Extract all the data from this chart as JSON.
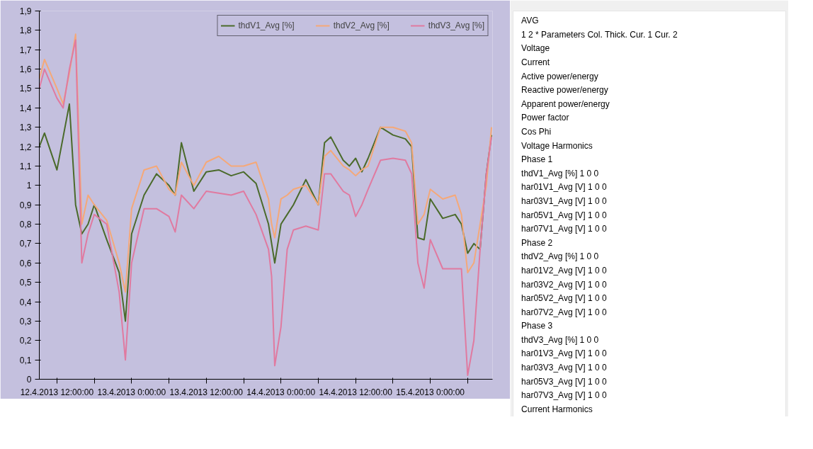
{
  "chart_data": [
    {
      "type": "line",
      "x": [
        "2013-04-12T09:10",
        "2013-04-12T10:00",
        "2013-04-12T12:00",
        "2013-04-12T13:00",
        "2013-04-12T14:00",
        "2013-04-12T15:00",
        "2013-04-12T16:00",
        "2013-04-12T17:00",
        "2013-04-12T18:00",
        "2013-04-12T20:00",
        "2013-04-12T22:00",
        "2013-04-12T23:00",
        "2013-04-13T00:00",
        "2013-04-13T02:00",
        "2013-04-13T04:00",
        "2013-04-13T06:00",
        "2013-04-13T07:00",
        "2013-04-13T08:00",
        "2013-04-13T10:00",
        "2013-04-13T12:00",
        "2013-04-13T14:00",
        "2013-04-13T16:00",
        "2013-04-13T18:00",
        "2013-04-13T20:00",
        "2013-04-13T22:00",
        "2013-04-13T22:30",
        "2013-04-13T23:00",
        "2013-04-14T00:00",
        "2013-04-14T01:00",
        "2013-04-14T02:00",
        "2013-04-14T04:00",
        "2013-04-14T06:00",
        "2013-04-14T07:00",
        "2013-04-14T08:00",
        "2013-04-14T10:00",
        "2013-04-14T11:00",
        "2013-04-14T12:00",
        "2013-04-14T13:00",
        "2013-04-14T14:00",
        "2013-04-14T16:00",
        "2013-04-14T18:00",
        "2013-04-14T20:00",
        "2013-04-14T21:00",
        "2013-04-14T22:00",
        "2013-04-14T23:00",
        "2013-04-15T00:00",
        "2013-04-15T02:00",
        "2013-04-15T04:00",
        "2013-04-15T05:00",
        "2013-04-15T06:00",
        "2013-04-15T07:00",
        "2013-04-15T08:00",
        "2013-04-15T09:00",
        "2013-04-15T09:50"
      ],
      "series": [
        {
          "name": "thdV1_Avg [%]",
          "color": "#4a6a2a",
          "values": [
            1.2,
            1.27,
            1.08,
            1.25,
            1.42,
            0.9,
            0.75,
            0.8,
            0.9,
            0.72,
            0.55,
            0.3,
            0.75,
            0.95,
            1.06,
            1.0,
            0.95,
            1.22,
            0.97,
            1.07,
            1.08,
            1.05,
            1.07,
            1.01,
            0.8,
            0.7,
            0.6,
            0.8,
            0.85,
            0.9,
            1.03,
            0.9,
            1.22,
            1.25,
            1.13,
            1.1,
            1.14,
            1.07,
            1.14,
            1.3,
            1.26,
            1.24,
            1.2,
            0.73,
            0.72,
            0.93,
            0.83,
            0.85,
            0.8,
            0.65,
            0.7,
            0.67,
            1.06,
            1.26
          ]
        },
        {
          "name": "thdV2_Avg [%]",
          "color": "#f5a878",
          "values": [
            1.55,
            1.65,
            1.5,
            1.42,
            1.58,
            1.78,
            0.8,
            0.95,
            0.9,
            0.82,
            0.6,
            0.45,
            0.88,
            1.08,
            1.1,
            0.98,
            0.95,
            1.12,
            1.0,
            1.12,
            1.15,
            1.1,
            1.1,
            1.12,
            0.93,
            0.8,
            0.73,
            0.93,
            0.95,
            0.98,
            1.0,
            0.9,
            1.15,
            1.18,
            1.1,
            1.08,
            1.05,
            1.08,
            1.1,
            1.3,
            1.3,
            1.28,
            1.22,
            0.8,
            0.85,
            0.98,
            0.93,
            0.95,
            0.85,
            0.55,
            0.6,
            0.8,
            1.0,
            1.3
          ]
        },
        {
          "name": "thdV3_Avg [%]",
          "color": "#e07aa0",
          "values": [
            1.5,
            1.6,
            1.45,
            1.4,
            1.6,
            1.75,
            0.6,
            0.75,
            0.85,
            0.8,
            0.45,
            0.1,
            0.6,
            0.88,
            0.88,
            0.84,
            0.76,
            0.95,
            0.88,
            0.97,
            0.96,
            0.95,
            0.97,
            0.85,
            0.67,
            0.53,
            0.07,
            0.27,
            0.67,
            0.77,
            0.79,
            0.77,
            1.06,
            1.06,
            0.97,
            0.95,
            0.84,
            0.9,
            0.98,
            1.13,
            1.14,
            1.13,
            1.06,
            0.6,
            0.47,
            0.72,
            0.57,
            0.57,
            0.57,
            0.02,
            0.2,
            0.67,
            1.06,
            1.25
          ]
        }
      ],
      "xlim": [
        "2013-04-12T09:10",
        "2013-04-15T10:00"
      ],
      "xticks": [
        {
          "value": "2013-04-12T12:00",
          "label": "12.4.2013 12:00:00"
        },
        {
          "value": "2013-04-12T18:00",
          "label": null
        },
        {
          "value": "2013-04-13T00:00",
          "label": "13.4.2013 0:00:00"
        },
        {
          "value": "2013-04-13T06:00",
          "label": null
        },
        {
          "value": "2013-04-13T12:00",
          "label": "13.4.2013 12:00:00"
        },
        {
          "value": "2013-04-13T18:00",
          "label": null
        },
        {
          "value": "2013-04-14T00:00",
          "label": "14.4.2013 0:00:00"
        },
        {
          "value": "2013-04-14T06:00",
          "label": null
        },
        {
          "value": "2013-04-14T12:00",
          "label": "14.4.2013 12:00:00"
        },
        {
          "value": "2013-04-14T18:00",
          "label": null
        },
        {
          "value": "2013-04-15T00:00",
          "label": "15.4.2013 0:00:00"
        },
        {
          "value": "2013-04-15T06:00",
          "label": null
        }
      ],
      "ylim": [
        0,
        1.9
      ],
      "yticks": [
        0,
        {
          "value": 0.1,
          "label": "0,1"
        },
        {
          "value": 0.2,
          "label": "0,2"
        },
        {
          "value": 0.3,
          "label": "0,3"
        },
        {
          "value": 0.4,
          "label": "0,4"
        },
        {
          "value": 0.5,
          "label": "0,5"
        },
        {
          "value": 0.6,
          "label": "0,6"
        },
        {
          "value": 0.7,
          "label": "0,7"
        },
        {
          "value": 0.8,
          "label": "0,8"
        },
        {
          "value": 0.9,
          "label": "0,9"
        },
        1,
        {
          "value": 1.1,
          "label": "1,1"
        },
        {
          "value": 1.2,
          "label": "1,2"
        },
        {
          "value": 1.3,
          "label": "1,3"
        },
        {
          "value": 1.4,
          "label": "1,4"
        },
        {
          "value": 1.5,
          "label": "1,5"
        },
        {
          "value": 1.6,
          "label": "1,6"
        },
        {
          "value": 1.7,
          "label": "1,7"
        },
        {
          "value": 1.8,
          "label": "1,8"
        },
        {
          "value": 1.9,
          "label": "1,9"
        }
      ],
      "grid": false,
      "legend": "top right",
      "line_style": "solid"
    },
    {
      "type": "other",
      "annotations": [
        "AVG",
        "1 2 * Parameters Col. Thick. Cur. 1 Cur. 2",
        "Voltage",
        "Current",
        "Active power/energy",
        "Reactive power/energy",
        "Apparent power/energy",
        "Power factor",
        "Cos Phi",
        "Voltage Harmonics",
        "Phase 1",
        "thdV1_Avg [%] 1 0 0",
        "har01V1_Avg [V] 1 0 0",
        "har03V1_Avg [V] 1 0 0",
        "har05V1_Avg [V] 1 0 0",
        "har07V1_Avg [V] 1 0 0",
        "Phase 2",
        "thdV2_Avg [%] 1 0 0",
        "har01V2_Avg [V] 1 0 0",
        "har03V2_Avg [V] 1 0 0",
        "har05V2_Avg [V] 1 0 0",
        "har07V2_Avg [V] 1 0 0",
        "Phase 3",
        "thdV3_Avg [%] 1 0 0",
        "har01V3_Avg [V] 1 0 0",
        "har03V3_Avg [V] 1 0 0",
        "har05V3_Avg [V] 1 0 0",
        "har07V3_Avg [V] 1 0 0",
        "Current Harmonics"
      ]
    }
  ]
}
